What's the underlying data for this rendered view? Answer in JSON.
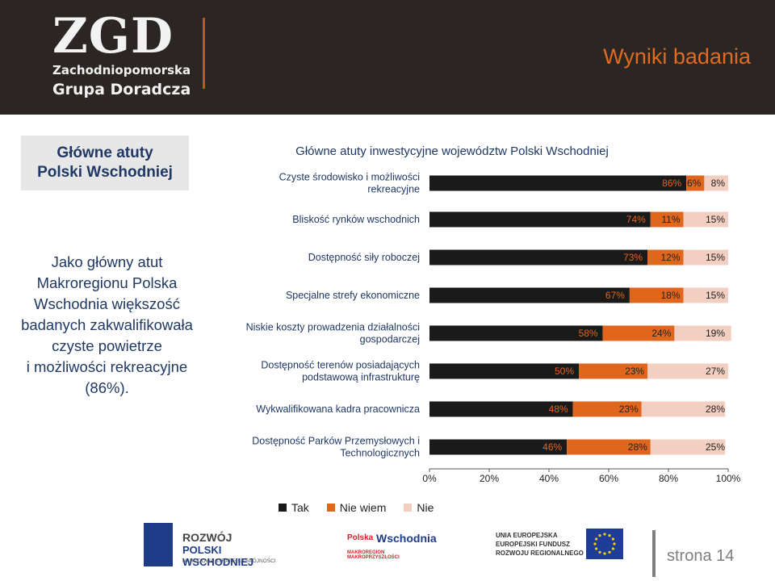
{
  "header": {
    "title": "Wyniki badania"
  },
  "logo": {
    "mark": "ZGD",
    "line1": "Zachodniopomorska",
    "line2": "Grupa Doradcza"
  },
  "side": {
    "box_line1": "Główne atuty",
    "box_line2": "Polski Wschodniej",
    "text_lines": [
      "Jako główny atut",
      "Makroregionu Polska",
      "Wschodnia większość",
      "badanych zakwalifikowała",
      "czyste powietrze",
      "i możliwości rekreacyjne",
      "(86%)."
    ]
  },
  "chart_data": {
    "type": "bar",
    "orientation": "horizontal",
    "stacked": true,
    "title": "Główne atuty inwestycyjne województw Polski Wschodniej",
    "categories": [
      [
        "Czyste środowisko i możliwości",
        "rekreacyjne"
      ],
      [
        "Bliskość rynków wschodnich"
      ],
      [
        "Dostępność siły roboczej"
      ],
      [
        "Specjalne strefy ekonomiczne"
      ],
      [
        "Niskie koszty prowadzenia działalności",
        "gospodarczej"
      ],
      [
        "Dostępność terenów posiadających",
        "podstawową infrastrukturę"
      ],
      [
        "Wykwalifikowana kadra pracownicza"
      ],
      [
        "Dostępność Parków Przemysłowych i",
        "Technologicznych"
      ]
    ],
    "series": [
      {
        "name": "Tak",
        "values": [
          86,
          74,
          73,
          67,
          58,
          50,
          48,
          46
        ],
        "labels": [
          "86%",
          "74%",
          "73%",
          "67%",
          "58%",
          "50%",
          "48%",
          "46%"
        ]
      },
      {
        "name": "Nie wiem",
        "values": [
          6,
          11,
          12,
          18,
          24,
          23,
          23,
          28
        ],
        "labels": [
          "6%",
          "11%",
          "12%",
          "18%",
          "24%",
          "23%",
          "23%",
          "28%"
        ]
      },
      {
        "name": "Nie",
        "values": [
          8,
          15,
          15,
          15,
          19,
          27,
          28,
          25
        ],
        "labels": [
          "8%",
          "15%",
          "15%",
          "15%",
          "19%",
          "27%",
          "28%",
          "25%"
        ]
      }
    ],
    "xlim": [
      0,
      100
    ],
    "xticks": [
      "0%",
      "20%",
      "40%",
      "60%",
      "80%",
      "100%"
    ],
    "legend_position": "bottom",
    "colors": {
      "tak": "#1a1a1a",
      "nie_wiem": "#e1661d",
      "nie": "#f2cfc1",
      "label": "#e1661d",
      "category": "#1f3864"
    }
  },
  "legend": {
    "items": [
      "Tak",
      "Nie wiem",
      "Nie"
    ]
  },
  "footer": {
    "rpw_line1": "ROZWÓJ",
    "rpw_line2": "POLSKI WSCHODNIEJ",
    "rpw_line3": "NARODOWA STRATEGIA SPÓJNOŚCI",
    "pw_line1": "Polska",
    "pw_line2": "Wschodnia",
    "pw_line3": "MAKROREGION MAKROPRZYSZŁOŚCI",
    "ue_line1": "UNIA EUROPEJSKA",
    "ue_line2": "EUROPEJSKI FUNDUSZ",
    "ue_line3": "ROZWOJU REGIONALNEGO",
    "page": "strona 14"
  }
}
